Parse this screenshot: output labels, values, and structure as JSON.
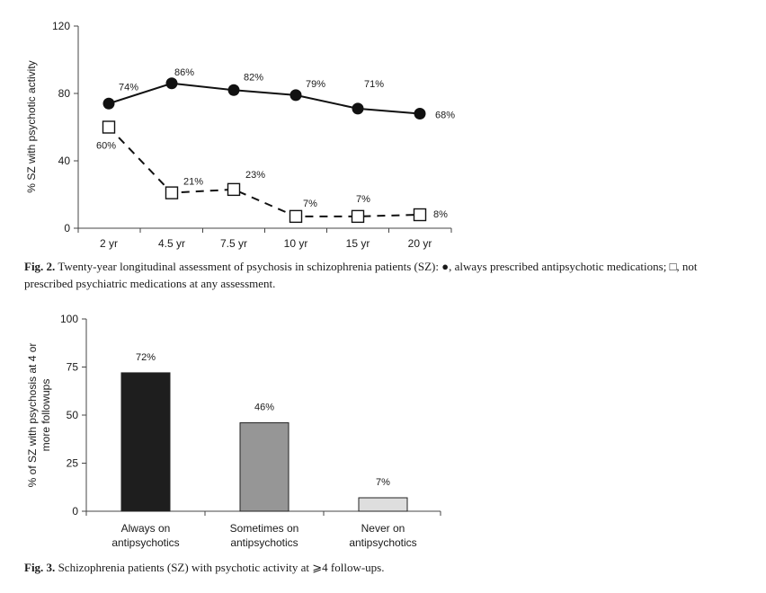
{
  "chart_data": [
    {
      "type": "line",
      "ylabel": "% SZ with psychotic activity",
      "xlabel": "",
      "categories": [
        "2 yr",
        "4.5 yr",
        "7.5 yr",
        "10 yr",
        "15 yr",
        "20 yr"
      ],
      "ylim": [
        0,
        120
      ],
      "yticks": [
        0,
        40,
        80,
        120
      ],
      "series": [
        {
          "marker": "filled-circle",
          "line_style": "solid",
          "values": [
            74,
            86,
            82,
            79,
            71,
            68
          ],
          "labels": [
            "74%",
            "86%",
            "82%",
            "79%",
            "71%",
            "68%"
          ]
        },
        {
          "marker": "open-square",
          "line_style": "dashed",
          "values": [
            60,
            21,
            23,
            7,
            7,
            8
          ],
          "labels": [
            "60%",
            "21%",
            "23%",
            "7%",
            "7%",
            "8%"
          ]
        }
      ],
      "caption": {
        "label": "Fig. 2.",
        "text": "Twenty-year longitudinal assessment of psychosis in schizophrenia patients (SZ): ●, always prescribed antipsychotic medications; □, not prescribed psychiatric medications at any assessment."
      }
    },
    {
      "type": "bar",
      "ylabel": "% of SZ with psychosis at 4 or more followups",
      "xlabel": "",
      "categories": [
        "Always on antipsychotics",
        "Sometimes on antipsychotics",
        "Never on antipsychotics"
      ],
      "category_lines": [
        [
          "Always on",
          "antipsychotics"
        ],
        [
          "Sometimes on",
          "antipsychotics"
        ],
        [
          "Never on",
          "antipsychotics"
        ]
      ],
      "values": [
        72,
        46,
        7
      ],
      "labels": [
        "72%",
        "46%",
        "7%"
      ],
      "colors": [
        "#1e1e1e",
        "#969696",
        "#dedede"
      ],
      "ylim": [
        0,
        100
      ],
      "yticks": [
        0,
        25,
        50,
        75,
        100
      ],
      "caption": {
        "label": "Fig. 3.",
        "text": "Schizophrenia patients (SZ) with psychotic activity at ⩾4 follow-ups."
      }
    }
  ]
}
